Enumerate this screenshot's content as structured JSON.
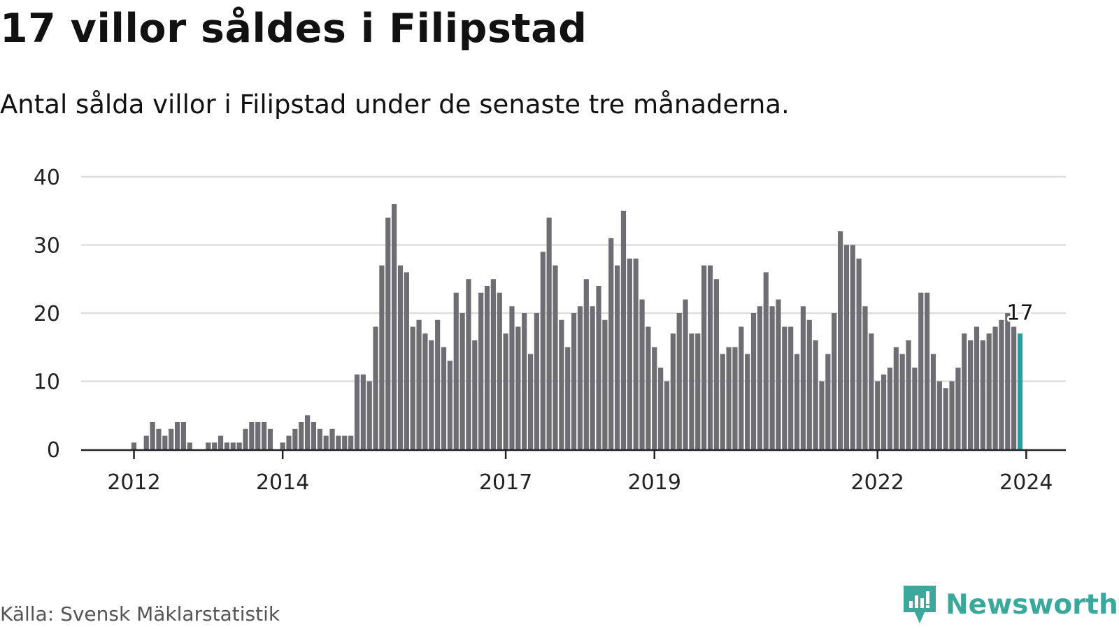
{
  "title": "17 villor såldes i Filipstad",
  "subtitle": "Antal sålda villor i Filipstad under de senaste tre månaderna.",
  "source": "Källa: Svensk Mäklarstatistik",
  "brand": {
    "name": "Newsworthy",
    "color": "#3aa89a"
  },
  "colors": {
    "bar": "#6e6d73",
    "highlight": "#14a89e",
    "grid": "#dddddd",
    "axis": "#222222"
  },
  "chart_data": {
    "type": "bar",
    "title": "17 villor såldes i Filipstad",
    "xlabel": "",
    "ylabel": "",
    "ylim": [
      0,
      40
    ],
    "yticks": [
      0,
      10,
      20,
      30,
      40
    ],
    "grid": true,
    "first_month": "2011-06",
    "xticks": [
      {
        "label": "2012",
        "month": "2012-01"
      },
      {
        "label": "2014",
        "month": "2014-01"
      },
      {
        "label": "2017",
        "month": "2017-01"
      },
      {
        "label": "2019",
        "month": "2019-01"
      },
      {
        "label": "2022",
        "month": "2022-01"
      },
      {
        "label": "2024",
        "month": "2024-01"
      }
    ],
    "values": [
      0,
      0,
      0,
      0,
      0,
      0,
      0,
      1,
      0,
      2,
      4,
      3,
      2,
      3,
      4,
      4,
      1,
      0,
      0,
      1,
      1,
      2,
      1,
      1,
      1,
      3,
      4,
      4,
      4,
      3,
      0,
      1,
      2,
      3,
      4,
      5,
      4,
      3,
      2,
      3,
      2,
      2,
      2,
      11,
      11,
      10,
      18,
      27,
      34,
      36,
      27,
      26,
      18,
      19,
      17,
      16,
      19,
      15,
      13,
      23,
      20,
      25,
      16,
      23,
      24,
      25,
      23,
      17,
      21,
      18,
      20,
      14,
      20,
      29,
      34,
      27,
      19,
      15,
      20,
      21,
      25,
      21,
      24,
      19,
      31,
      27,
      35,
      28,
      28,
      22,
      18,
      15,
      12,
      10,
      17,
      20,
      22,
      17,
      17,
      27,
      27,
      25,
      14,
      15,
      15,
      18,
      14,
      20,
      21,
      26,
      21,
      22,
      18,
      18,
      14,
      21,
      19,
      16,
      10,
      14,
      20,
      32,
      30,
      30,
      28,
      21,
      17,
      10,
      11,
      12,
      15,
      14,
      16,
      12,
      23,
      23,
      14,
      10,
      9,
      10,
      12,
      17,
      16,
      18,
      16,
      17,
      18,
      19,
      20,
      18,
      17
    ],
    "highlight_last": true,
    "last_label": "17"
  }
}
